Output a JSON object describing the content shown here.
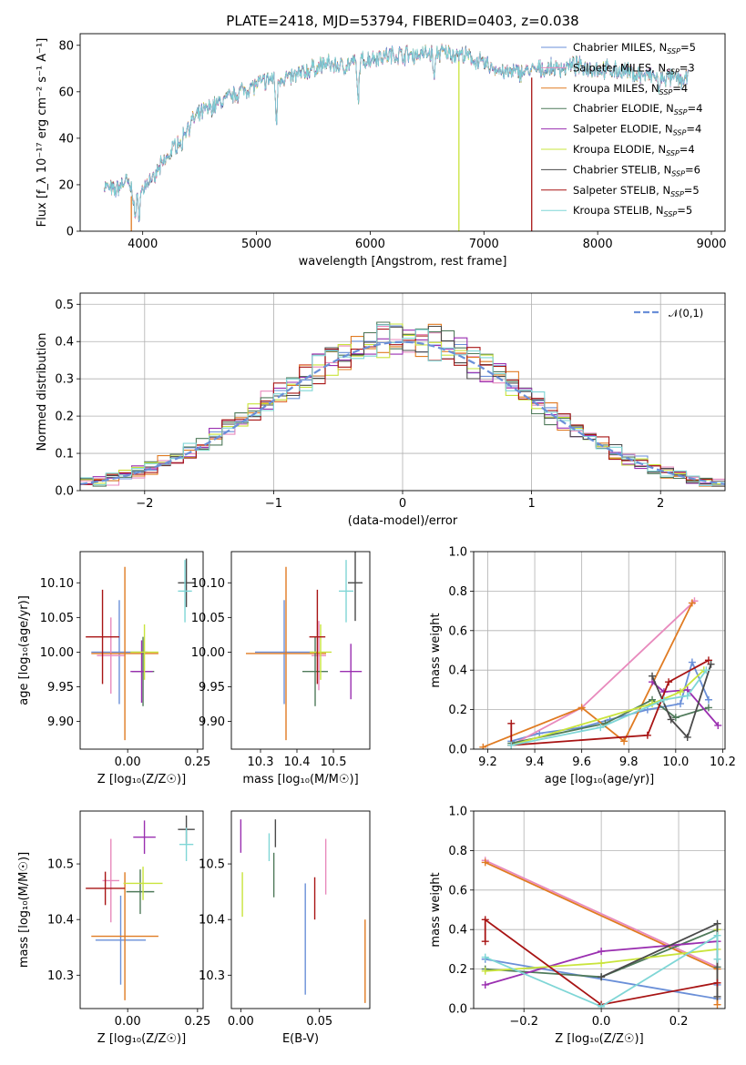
{
  "colors": [
    "#6a8fd8",
    "#e88abd",
    "#e07b22",
    "#4f7a5a",
    "#9a2fb0",
    "#c9e43c",
    "#4a4a4a",
    "#a81414",
    "#7fd6d6"
  ],
  "chart_data": [
    {
      "id": "spectrum",
      "type": "line",
      "title": "PLATE=2418, MJD=53794, FIBERID=0403, z=0.038",
      "xlabel": "wavelength [Angstrom, rest frame]",
      "ylabel": "Flux [f_λ 10⁻¹⁷ erg cm⁻² s⁻¹ A⁻¹]",
      "xlim": [
        3450,
        9120
      ],
      "ylim": [
        0,
        85
      ],
      "xticks": [
        4000,
        5000,
        6000,
        7000,
        8000,
        9000
      ],
      "yticks": [
        0,
        20,
        40,
        60,
        80
      ],
      "legend_position": "right",
      "series": [
        {
          "name": "Chabrier MILES, N_SSP=5"
        },
        {
          "name": "Salpeter MILES, N_SSP=3"
        },
        {
          "name": "Kroupa MILES, N_SSP=4"
        },
        {
          "name": "Chabrier ELODIE, N_SSP=4"
        },
        {
          "name": "Salpeter ELODIE, N_SSP=4"
        },
        {
          "name": "Kroupa ELODIE, N_SSP=4"
        },
        {
          "name": "Chabrier STELIB, N_SSP=6"
        },
        {
          "name": "Salpeter STELIB, N_SSP=5"
        },
        {
          "name": "Kroupa STELIB, N_SSP=5"
        }
      ],
      "continuum": {
        "x": [
          3650,
          3750,
          3850,
          3950,
          4050,
          4150,
          4250,
          4350,
          4450,
          4550,
          4700,
          4850,
          5000,
          5150,
          5300,
          5450,
          5600,
          5750,
          5900,
          6050,
          6200,
          6400,
          6600,
          6800,
          7000,
          7200,
          7400,
          7600,
          7800,
          8000,
          8200,
          8400,
          8600,
          8800
        ],
        "y": [
          20,
          17,
          22,
          14,
          22,
          27,
          34,
          42,
          48,
          52,
          56,
          60,
          63,
          66,
          66,
          69,
          72,
          71,
          73,
          75,
          76,
          76,
          77,
          76,
          72,
          68,
          69,
          70,
          71,
          70,
          69,
          67,
          66,
          65
        ]
      },
      "features": [
        {
          "x": 3933,
          "y": 6
        },
        {
          "x": 3968,
          "y": 8
        },
        {
          "x": 4102,
          "y": 20
        },
        {
          "x": 4340,
          "y": 35
        },
        {
          "x": 5175,
          "y": 48
        },
        {
          "x": 5893,
          "y": 56
        },
        {
          "x": 6563,
          "y": 66
        },
        {
          "x": 8542,
          "y": 60
        }
      ],
      "spikes": [
        {
          "x": 3900,
          "y": 0,
          "series": 2
        },
        {
          "x": 6780,
          "y": 0,
          "series": 5
        },
        {
          "x": 7420,
          "y": 0,
          "series": 7
        }
      ]
    },
    {
      "id": "residuals",
      "type": "line",
      "xlabel": "(data-model)/error",
      "ylabel": "Normed distribution",
      "xlim": [
        -2.5,
        2.5
      ],
      "ylim": [
        0,
        0.53
      ],
      "xticks": [
        -2,
        -1,
        0,
        1,
        2
      ],
      "yticks": [
        0.0,
        0.1,
        0.2,
        0.3,
        0.4,
        0.5
      ],
      "bin_width": 0.1,
      "grid": true,
      "reference": {
        "name": "𝒩(0,1)",
        "color": "#6a8fd8",
        "style": "dashed"
      }
    },
    {
      "id": "age_vs_Z",
      "type": "scatter",
      "xlabel": "Z [log₁₀(Z/Z☉)]",
      "ylabel": "age  [log₁₀(age/yr)]",
      "xlim": [
        -0.17,
        0.27
      ],
      "ylim": [
        9.86,
        10.145
      ],
      "xticks": [
        0.0,
        0.25
      ],
      "yticks": [
        9.9,
        9.95,
        10.0,
        10.05,
        10.1
      ],
      "points": [
        {
          "x": -0.03,
          "y": 10.0,
          "xerr": 0.1,
          "yerr": 0.075,
          "series": 0
        },
        {
          "x": -0.06,
          "y": 9.995,
          "xerr": 0.05,
          "yerr": 0.055,
          "series": 1
        },
        {
          "x": -0.01,
          "y": 9.998,
          "xerr": 0.12,
          "yerr": 0.125,
          "series": 2
        },
        {
          "x": 0.055,
          "y": 9.972,
          "xerr": 0.04,
          "yerr": 0.05,
          "series": 3
        },
        {
          "x": 0.05,
          "y": 9.972,
          "xerr": 0.04,
          "yerr": 0.045,
          "series": 4
        },
        {
          "x": 0.06,
          "y": 10.0,
          "xerr": 0.05,
          "yerr": 0.04,
          "series": 5
        },
        {
          "x": 0.21,
          "y": 10.1,
          "xerr": 0.03,
          "yerr": 0.035,
          "series": 6
        },
        {
          "x": -0.09,
          "y": 10.022,
          "xerr": 0.06,
          "yerr": 0.068,
          "series": 7
        },
        {
          "x": 0.205,
          "y": 10.088,
          "xerr": 0.025,
          "yerr": 0.045,
          "series": 8
        }
      ]
    },
    {
      "id": "age_vs_mass",
      "type": "scatter",
      "xlabel": "mass [log₁₀(M/M☉)]",
      "ylabel": "",
      "xlim": [
        10.22,
        10.6
      ],
      "ylim": [
        9.86,
        10.145
      ],
      "xticks": [
        10.3,
        10.4,
        10.5
      ],
      "yticks": [
        9.9,
        9.95,
        10.0,
        10.05,
        10.1
      ],
      "points": [
        {
          "x": 10.365,
          "y": 10.0,
          "xerr": 0.08,
          "yerr": 0.075,
          "series": 0
        },
        {
          "x": 10.46,
          "y": 9.995,
          "xerr": 0.02,
          "yerr": 0.05,
          "series": 1
        },
        {
          "x": 10.37,
          "y": 9.998,
          "xerr": 0.11,
          "yerr": 0.125,
          "series": 2
        },
        {
          "x": 10.45,
          "y": 9.972,
          "xerr": 0.035,
          "yerr": 0.05,
          "series": 3
        },
        {
          "x": 10.548,
          "y": 9.972,
          "xerr": 0.03,
          "yerr": 0.04,
          "series": 4
        },
        {
          "x": 10.465,
          "y": 10.0,
          "xerr": 0.03,
          "yerr": 0.04,
          "series": 5
        },
        {
          "x": 10.56,
          "y": 10.1,
          "xerr": 0.02,
          "yerr": 0.055,
          "series": 6
        },
        {
          "x": 10.456,
          "y": 10.022,
          "xerr": 0.022,
          "yerr": 0.068,
          "series": 7
        },
        {
          "x": 10.535,
          "y": 10.088,
          "xerr": 0.02,
          "yerr": 0.045,
          "series": 8
        }
      ]
    },
    {
      "id": "weight_vs_age",
      "type": "line",
      "xlabel": "age  [log₁₀(age/yr)]",
      "ylabel": "mass weight",
      "xlim": [
        9.14,
        10.21
      ],
      "ylim": [
        0,
        1
      ],
      "xticks": [
        9.2,
        9.4,
        9.6,
        9.8,
        10.0,
        10.2
      ],
      "yticks": [
        0.0,
        0.2,
        0.4,
        0.6,
        0.8,
        1.0
      ],
      "grid": true,
      "series": [
        {
          "series": 0,
          "x": [
            9.3,
            9.42,
            9.6,
            9.72,
            9.88,
            10.02,
            10.07,
            10.14
          ],
          "y": [
            0.04,
            0.08,
            0.11,
            0.15,
            0.2,
            0.23,
            0.44,
            0.25
          ]
        },
        {
          "series": 1,
          "x": [
            9.3,
            9.6,
            10.08
          ],
          "y": [
            0.02,
            0.21,
            0.75
          ]
        },
        {
          "series": 2,
          "x": [
            9.18,
            9.6,
            9.78,
            10.07
          ],
          "y": [
            0.01,
            0.21,
            0.04,
            0.74
          ]
        },
        {
          "series": 3,
          "x": [
            9.3,
            9.7,
            9.9,
            10.0,
            10.14
          ],
          "y": [
            0.03,
            0.13,
            0.25,
            0.16,
            0.21
          ]
        },
        {
          "series": 4,
          "x": [
            9.9,
            9.95,
            10.05,
            10.18
          ],
          "y": [
            0.34,
            0.29,
            0.3,
            0.12
          ]
        },
        {
          "series": 5,
          "x": [
            9.3,
            9.9,
            10.02,
            10.12
          ],
          "y": [
            0.02,
            0.23,
            0.29,
            0.4
          ]
        },
        {
          "series": 6,
          "x": [
            9.9,
            9.98,
            10.05,
            10.15
          ],
          "y": [
            0.37,
            0.15,
            0.06,
            0.43
          ]
        },
        {
          "series": 7,
          "x": [
            9.3,
            9.3,
            9.88,
            9.97,
            10.14
          ],
          "y": [
            0.13,
            0.02,
            0.07,
            0.34,
            0.45
          ]
        },
        {
          "series": 8,
          "x": [
            9.3,
            9.68,
            9.95,
            10.05,
            10.13
          ],
          "y": [
            0.02,
            0.11,
            0.25,
            0.27,
            0.4
          ]
        }
      ]
    },
    {
      "id": "mass_vs_Z",
      "type": "scatter",
      "xlabel": "Z [log₁₀(Z/Z☉)]",
      "ylabel": "mass [log₁₀(M/M☉)]",
      "xlim": [
        -0.17,
        0.27
      ],
      "ylim": [
        10.24,
        10.595
      ],
      "xticks": [
        0.0,
        0.25
      ],
      "yticks": [
        10.3,
        10.4,
        10.5
      ],
      "points": [
        {
          "x": -0.025,
          "y": 10.363,
          "xerr": 0.09,
          "yerr": 0.08,
          "series": 0
        },
        {
          "x": -0.06,
          "y": 10.47,
          "xerr": 0.03,
          "yerr": 0.075,
          "series": 1
        },
        {
          "x": -0.01,
          "y": 10.37,
          "xerr": 0.12,
          "yerr": 0.115,
          "series": 2
        },
        {
          "x": 0.045,
          "y": 10.45,
          "xerr": 0.05,
          "yerr": 0.04,
          "series": 3
        },
        {
          "x": 0.06,
          "y": 10.548,
          "xerr": 0.04,
          "yerr": 0.03,
          "series": 4
        },
        {
          "x": 0.055,
          "y": 10.465,
          "xerr": 0.07,
          "yerr": 0.03,
          "series": 5
        },
        {
          "x": 0.21,
          "y": 10.562,
          "xerr": 0.03,
          "yerr": 0.025,
          "series": 6
        },
        {
          "x": -0.08,
          "y": 10.456,
          "xerr": 0.07,
          "yerr": 0.03,
          "series": 7
        },
        {
          "x": 0.21,
          "y": 10.535,
          "xerr": 0.025,
          "yerr": 0.03,
          "series": 8
        }
      ]
    },
    {
      "id": "mass_vs_ebv",
      "type": "scatter",
      "xlabel": "E(B-V)",
      "ylabel": "",
      "xlim": [
        -0.006,
        0.082
      ],
      "ylim": [
        10.24,
        10.595
      ],
      "xticks": [
        0.0,
        0.05
      ],
      "yticks": [
        10.3,
        10.4,
        10.5
      ],
      "points": [
        {
          "x": 0.041,
          "y": 10.365,
          "yerr": 0.1,
          "series": 0
        },
        {
          "x": 0.054,
          "y": 10.495,
          "yerr": 0.05,
          "series": 1
        },
        {
          "x": 0.079,
          "y": 10.325,
          "yerr": 0.075,
          "series": 2
        },
        {
          "x": 0.021,
          "y": 10.48,
          "yerr": 0.04,
          "series": 3
        },
        {
          "x": 0.0,
          "y": 10.55,
          "yerr": 0.03,
          "series": 4
        },
        {
          "x": 0.001,
          "y": 10.445,
          "yerr": 0.04,
          "series": 5
        },
        {
          "x": 0.022,
          "y": 10.555,
          "yerr": 0.025,
          "series": 6
        },
        {
          "x": 0.047,
          "y": 10.438,
          "yerr": 0.038,
          "series": 7
        },
        {
          "x": 0.018,
          "y": 10.53,
          "yerr": 0.025,
          "series": 8
        }
      ]
    },
    {
      "id": "weight_vs_Z",
      "type": "line",
      "xlabel": "Z [log₁₀(Z/Z☉)]",
      "ylabel": "mass weight",
      "xlim": [
        -0.33,
        0.32
      ],
      "ylim": [
        0,
        1
      ],
      "xticks": [
        -0.2,
        0.0,
        0.2
      ],
      "yticks": [
        0.0,
        0.2,
        0.4,
        0.6,
        0.8,
        1.0
      ],
      "grid": true,
      "series": [
        {
          "series": 0,
          "x": [
            -0.3,
            0.3,
            0.3
          ],
          "y": [
            0.25,
            0.05,
            0.12
          ]
        },
        {
          "series": 1,
          "x": [
            -0.3,
            0.3
          ],
          "y": [
            0.75,
            0.21
          ]
        },
        {
          "series": 2,
          "x": [
            -0.3,
            0.3,
            0.3
          ],
          "y": [
            0.74,
            0.2,
            0.02
          ]
        },
        {
          "series": 3,
          "x": [
            -0.3,
            0.0,
            0.3,
            0.3
          ],
          "y": [
            0.2,
            0.16,
            0.4,
            0.21
          ]
        },
        {
          "series": 4,
          "x": [
            -0.3,
            0.0,
            0.3
          ],
          "y": [
            0.12,
            0.29,
            0.34
          ]
        },
        {
          "series": 5,
          "x": [
            -0.3,
            0.0,
            0.3,
            0.3
          ],
          "y": [
            0.19,
            0.23,
            0.3,
            0.4
          ]
        },
        {
          "series": 6,
          "x": [
            0.0,
            0.3,
            0.3
          ],
          "y": [
            0.16,
            0.43,
            0.06
          ]
        },
        {
          "series": 7,
          "x": [
            -0.3,
            -0.3,
            0.0,
            0.3
          ],
          "y": [
            0.34,
            0.45,
            0.02,
            0.13
          ]
        },
        {
          "series": 8,
          "x": [
            -0.3,
            0.0,
            0.3,
            0.3
          ],
          "y": [
            0.26,
            0.01,
            0.37,
            0.25
          ]
        }
      ]
    }
  ]
}
